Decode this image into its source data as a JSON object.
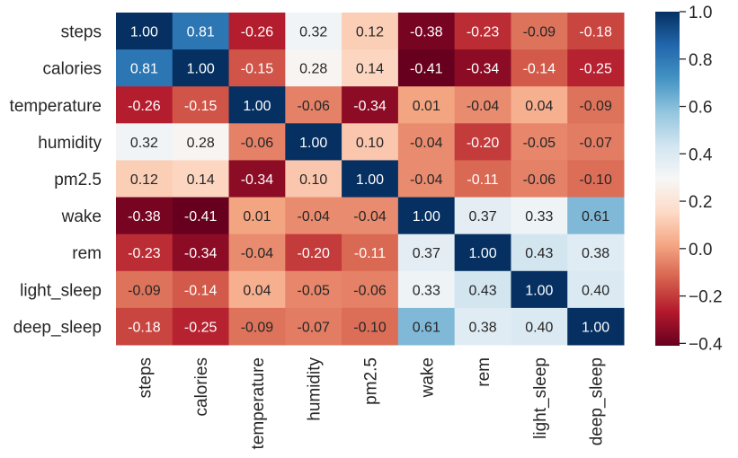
{
  "chart_data": {
    "type": "heatmap",
    "title": "",
    "xlabel": "",
    "ylabel": "",
    "rows": [
      "steps",
      "calories",
      "temperature",
      "humidity",
      "pm2.5",
      "wake",
      "rem",
      "light_sleep",
      "deep_sleep"
    ],
    "columns": [
      "steps",
      "calories",
      "temperature",
      "humidity",
      "pm2.5",
      "wake",
      "rem",
      "light_sleep",
      "deep_sleep"
    ],
    "values": [
      [
        1.0,
        0.81,
        -0.26,
        0.32,
        0.12,
        -0.38,
        -0.23,
        -0.09,
        -0.18
      ],
      [
        0.81,
        1.0,
        -0.15,
        0.28,
        0.14,
        -0.41,
        -0.34,
        -0.14,
        -0.25
      ],
      [
        -0.26,
        -0.15,
        1.0,
        -0.06,
        -0.34,
        0.01,
        -0.04,
        0.04,
        -0.09
      ],
      [
        0.32,
        0.28,
        -0.06,
        1.0,
        0.1,
        -0.04,
        -0.2,
        -0.05,
        -0.07
      ],
      [
        0.12,
        0.14,
        -0.34,
        0.1,
        1.0,
        -0.04,
        -0.11,
        -0.06,
        -0.1
      ],
      [
        -0.38,
        -0.41,
        0.01,
        -0.04,
        -0.04,
        1.0,
        0.37,
        0.33,
        0.61
      ],
      [
        -0.23,
        -0.34,
        -0.04,
        -0.2,
        -0.11,
        0.37,
        1.0,
        0.43,
        0.38
      ],
      [
        -0.09,
        -0.14,
        0.04,
        -0.05,
        -0.06,
        0.33,
        0.43,
        1.0,
        0.4
      ],
      [
        -0.18,
        -0.25,
        -0.09,
        -0.07,
        -0.1,
        0.61,
        0.38,
        0.4,
        1.0
      ]
    ],
    "colorbar": {
      "range": [
        -0.41,
        1.0
      ],
      "ticks": [
        1.0,
        0.8,
        0.6,
        0.4,
        0.2,
        0.0,
        -0.2,
        -0.4
      ],
      "tick_labels": [
        "1.0",
        "0.8",
        "0.6",
        "0.4",
        "0.2",
        "0.0",
        "−0.2",
        "−0.4"
      ]
    },
    "colormap": "RdBu",
    "annotated": true,
    "grid": false
  }
}
